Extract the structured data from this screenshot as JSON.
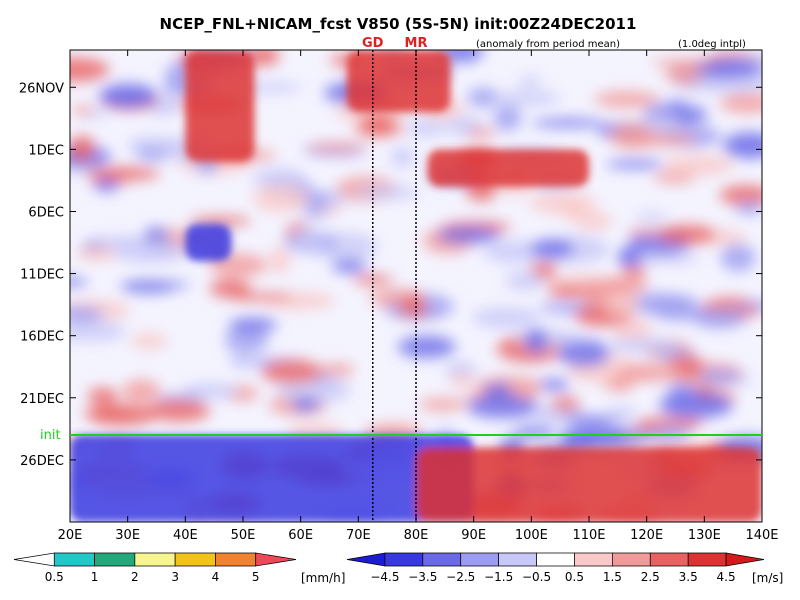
{
  "chart_data": {
    "type": "heatmap",
    "title": "NCEP_FNL+NICAM_fcst V850 (5S-5N) init:00Z24DEC2011",
    "subtitle": "(anomaly from period mean)",
    "note": "(1.0deg intpl)",
    "xlabel": "",
    "ylabel": "",
    "xlim": [
      20,
      140
    ],
    "x_ticks": [
      {
        "value": 20,
        "label": "20E"
      },
      {
        "value": 30,
        "label": "30E"
      },
      {
        "value": 40,
        "label": "40E"
      },
      {
        "value": 50,
        "label": "50E"
      },
      {
        "value": 60,
        "label": "60E"
      },
      {
        "value": 70,
        "label": "70E"
      },
      {
        "value": 80,
        "label": "80E"
      },
      {
        "value": 90,
        "label": "90E"
      },
      {
        "value": 100,
        "label": "100E"
      },
      {
        "value": 110,
        "label": "110E"
      },
      {
        "value": 120,
        "label": "120E"
      },
      {
        "value": 130,
        "label": "130E"
      },
      {
        "value": 140,
        "label": "140E"
      }
    ],
    "y_ticks": [
      {
        "value": "2011-11-26",
        "label": "26NOV"
      },
      {
        "value": "2011-12-01",
        "label": "1DEC"
      },
      {
        "value": "2011-12-06",
        "label": "6DEC"
      },
      {
        "value": "2011-12-11",
        "label": "11DEC"
      },
      {
        "value": "2011-12-16",
        "label": "16DEC"
      },
      {
        "value": "2011-12-21",
        "label": "21DEC"
      },
      {
        "value": "2011-12-26",
        "label": "26DEC"
      }
    ],
    "ylim": [
      "2011-11-23",
      "2011-12-31"
    ],
    "init": {
      "label": "init",
      "date": "2011-12-24",
      "color": "#22cc22"
    },
    "reference_lines": [
      {
        "label": "GD",
        "lon": 72.5
      },
      {
        "label": "MR",
        "lon": 80
      }
    ],
    "precip_colorbar": {
      "unit": "[mm/h]",
      "ticks": [
        "0.5",
        "1",
        "2",
        "3",
        "4",
        "5"
      ],
      "colors": [
        "#ffffff",
        "#22c8c8",
        "#22a87a",
        "#f7f590",
        "#f2c318",
        "#f08230",
        "#f04858"
      ]
    },
    "wind_colorbar": {
      "unit": "[m/s]",
      "ticks": [
        "−4.5",
        "−3.5",
        "−2.5",
        "−1.5",
        "−0.5",
        "0.5",
        "1.5",
        "2.5",
        "3.5",
        "4.5"
      ],
      "colors": [
        "#1c1cd4",
        "#3838e0",
        "#6a6ae8",
        "#9c9cf0",
        "#c8c8f8",
        "#ffffff",
        "#f9c8c8",
        "#f19a9a",
        "#e86262",
        "#dc3232",
        "#d41a1a"
      ]
    },
    "features": [
      {
        "type": "anomaly",
        "sign": "positive",
        "lon_range": [
          40,
          52
        ],
        "date_range": [
          "2011-11-23",
          "2011-12-02"
        ]
      },
      {
        "type": "anomaly",
        "sign": "positive",
        "lon_range": [
          68,
          86
        ],
        "date_range": [
          "2011-11-23",
          "2011-11-28"
        ]
      },
      {
        "type": "anomaly",
        "sign": "positive",
        "lon_range": [
          82,
          110
        ],
        "date_range": [
          "2011-12-01",
          "2011-12-04"
        ]
      },
      {
        "type": "anomaly",
        "sign": "negative",
        "lon_range": [
          40,
          48
        ],
        "date_range": [
          "2011-12-07",
          "2011-12-10"
        ]
      },
      {
        "type": "anomaly",
        "sign": "negative",
        "lon_range": [
          20,
          90
        ],
        "date_range": [
          "2011-12-24",
          "2011-12-31"
        ]
      },
      {
        "type": "anomaly",
        "sign": "positive",
        "lon_range": [
          80,
          140
        ],
        "date_range": [
          "2011-12-25",
          "2011-12-31"
        ]
      }
    ]
  }
}
